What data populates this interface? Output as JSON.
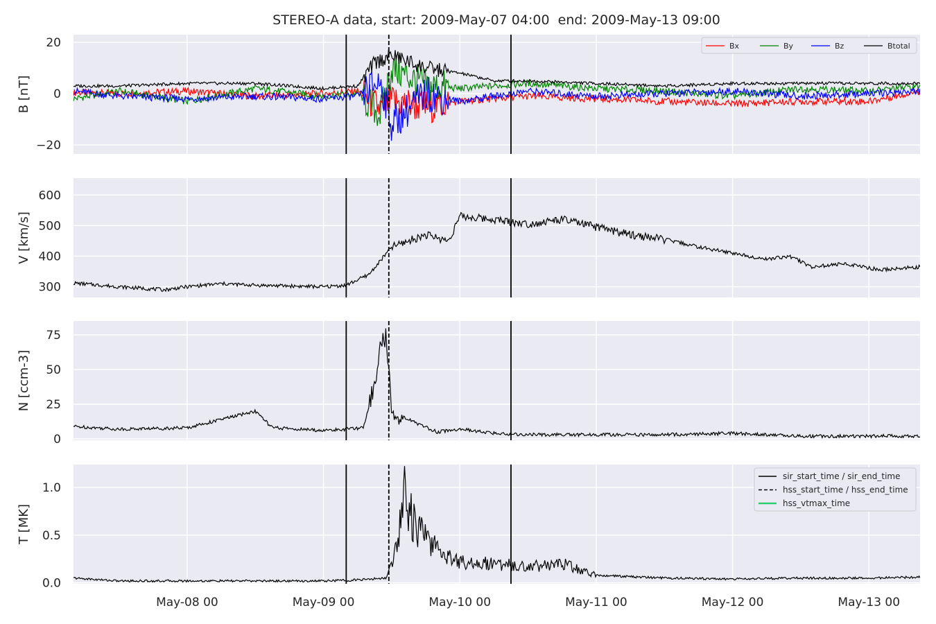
{
  "chart_data": {
    "type": "line",
    "title": "STEREO-A data, start: 2009-May-07 04:00  end: 2009-May-13 09:00",
    "xlim": [
      "2009-05-07T04:00",
      "2009-05-13T09:00"
    ],
    "xticks": [
      {
        "date": "2009-05-08T00:00",
        "label": "May-08 00"
      },
      {
        "date": "2009-05-09T00:00",
        "label": "May-09 00"
      },
      {
        "date": "2009-05-10T00:00",
        "label": "May-10 00"
      },
      {
        "date": "2009-05-11T00:00",
        "label": "May-11 00"
      },
      {
        "date": "2009-05-12T00:00",
        "label": "May-12 00"
      },
      {
        "date": "2009-05-13T00:00",
        "label": "May-13 00"
      }
    ],
    "grid": true,
    "vlines": [
      {
        "name": "sir_start_time / sir_end_time",
        "date": "2009-05-09T04:00",
        "style": "solid"
      },
      {
        "name": "hss_start_time / hss_end_time",
        "date": "2009-05-09T11:30",
        "style": "dashed"
      },
      {
        "name": "sir_start_time / sir_end_time",
        "date": "2009-05-10T09:00",
        "style": "solid"
      }
    ],
    "panels": [
      {
        "ylabel": "B [nT]",
        "ylim": [
          -23.5,
          23
        ],
        "yticks": [
          20,
          0,
          -20
        ],
        "yticklabels": [
          "20",
          "0",
          "−20"
        ],
        "legend": "top-right, 4 columns",
        "series": [
          {
            "name": "Bx",
            "color": "#ff0000",
            "points": [
              [
                "2009-05-07T04:00",
                0.5
              ],
              [
                "2009-05-07T12:00",
                0
              ],
              [
                "2009-05-08T00:00",
                1
              ],
              [
                "2009-05-08T12:00",
                -1
              ],
              [
                "2009-05-09T00:00",
                0
              ],
              [
                "2009-05-09T06:00",
                1
              ],
              [
                "2009-05-09T10:00",
                -6
              ],
              [
                "2009-05-09T12:00",
                -3
              ],
              [
                "2009-05-09T18:00",
                -5
              ],
              [
                "2009-05-10T00:00",
                -3
              ],
              [
                "2009-05-10T12:00",
                -1
              ],
              [
                "2009-05-11T00:00",
                -2
              ],
              [
                "2009-05-11T12:00",
                -3
              ],
              [
                "2009-05-12T00:00",
                -4
              ],
              [
                "2009-05-12T12:00",
                -3
              ],
              [
                "2009-05-13T00:00",
                -3
              ],
              [
                "2009-05-13T09:00",
                1
              ]
            ]
          },
          {
            "name": "By",
            "color": "#008000",
            "points": [
              [
                "2009-05-07T04:00",
                -2
              ],
              [
                "2009-05-07T12:00",
                1
              ],
              [
                "2009-05-08T00:00",
                -3
              ],
              [
                "2009-05-08T12:00",
                2
              ],
              [
                "2009-05-09T00:00",
                -1
              ],
              [
                "2009-05-09T06:00",
                0
              ],
              [
                "2009-05-09T10:00",
                -8
              ],
              [
                "2009-05-09T12:00",
                10
              ],
              [
                "2009-05-09T18:00",
                3
              ],
              [
                "2009-05-10T00:00",
                2
              ],
              [
                "2009-05-10T12:00",
                4
              ],
              [
                "2009-05-11T00:00",
                2
              ],
              [
                "2009-05-11T12:00",
                1
              ],
              [
                "2009-05-12T00:00",
                -1
              ],
              [
                "2009-05-12T12:00",
                2
              ],
              [
                "2009-05-13T00:00",
                1
              ],
              [
                "2009-05-13T09:00",
                3
              ]
            ]
          },
          {
            "name": "Bz",
            "color": "#0000ff",
            "points": [
              [
                "2009-05-07T04:00",
                1
              ],
              [
                "2009-05-07T12:00",
                -1
              ],
              [
                "2009-05-08T00:00",
                -2
              ],
              [
                "2009-05-08T12:00",
                -1
              ],
              [
                "2009-05-09T00:00",
                -2
              ],
              [
                "2009-05-09T06:00",
                -1
              ],
              [
                "2009-05-09T10:00",
                5
              ],
              [
                "2009-05-09T12:00",
                -12
              ],
              [
                "2009-05-09T18:00",
                0
              ],
              [
                "2009-05-10T00:00",
                -3
              ],
              [
                "2009-05-10T12:00",
                1
              ],
              [
                "2009-05-11T00:00",
                -1
              ],
              [
                "2009-05-11T12:00",
                0
              ],
              [
                "2009-05-12T00:00",
                1
              ],
              [
                "2009-05-12T12:00",
                -1
              ],
              [
                "2009-05-13T00:00",
                0
              ],
              [
                "2009-05-13T09:00",
                1
              ]
            ]
          },
          {
            "name": "Btotal",
            "color": "#000000",
            "points": [
              [
                "2009-05-07T04:00",
                3
              ],
              [
                "2009-05-07T12:00",
                3
              ],
              [
                "2009-05-08T00:00",
                4
              ],
              [
                "2009-05-08T12:00",
                4
              ],
              [
                "2009-05-09T00:00",
                2
              ],
              [
                "2009-05-09T06:00",
                3
              ],
              [
                "2009-05-09T09:00",
                12
              ],
              [
                "2009-05-09T12:00",
                15
              ],
              [
                "2009-05-09T18:00",
                10
              ],
              [
                "2009-05-10T00:00",
                8
              ],
              [
                "2009-05-10T06:00",
                5
              ],
              [
                "2009-05-10T12:00",
                5
              ],
              [
                "2009-05-11T00:00",
                4
              ],
              [
                "2009-05-11T12:00",
                3
              ],
              [
                "2009-05-12T00:00",
                4
              ],
              [
                "2009-05-12T12:00",
                4
              ],
              [
                "2009-05-13T00:00",
                4
              ],
              [
                "2009-05-13T09:00",
                4
              ]
            ]
          }
        ]
      },
      {
        "ylabel": "V [km/s]",
        "ylim": [
          265,
          655
        ],
        "yticks": [
          600,
          500,
          400,
          300
        ],
        "yticklabels": [
          "600",
          "500",
          "400",
          "300"
        ],
        "series": [
          {
            "name": "",
            "color": "#000000",
            "points": [
              [
                "2009-05-07T04:00",
                312
              ],
              [
                "2009-05-07T12:00",
                300
              ],
              [
                "2009-05-07T20:00",
                290
              ],
              [
                "2009-05-08T00:00",
                300
              ],
              [
                "2009-05-08T06:00",
                310
              ],
              [
                "2009-05-08T12:00",
                305
              ],
              [
                "2009-05-09T00:00",
                300
              ],
              [
                "2009-05-09T04:00",
                305
              ],
              [
                "2009-05-09T08:00",
                340
              ],
              [
                "2009-05-09T10:00",
                385
              ],
              [
                "2009-05-09T12:00",
                430
              ],
              [
                "2009-05-09T18:00",
                470
              ],
              [
                "2009-05-09T22:00",
                450
              ],
              [
                "2009-05-10T00:00",
                530
              ],
              [
                "2009-05-10T06:00",
                520
              ],
              [
                "2009-05-10T12:00",
                505
              ],
              [
                "2009-05-10T18:00",
                520
              ],
              [
                "2009-05-11T00:00",
                495
              ],
              [
                "2009-05-11T06:00",
                470
              ],
              [
                "2009-05-11T12:00",
                455
              ],
              [
                "2009-05-11T18:00",
                430
              ],
              [
                "2009-05-12T00:00",
                410
              ],
              [
                "2009-05-12T06:00",
                390
              ],
              [
                "2009-05-12T10:00",
                400
              ],
              [
                "2009-05-12T14:00",
                365
              ],
              [
                "2009-05-12T20:00",
                375
              ],
              [
                "2009-05-13T02:00",
                355
              ],
              [
                "2009-05-13T09:00",
                365
              ]
            ]
          }
        ]
      },
      {
        "ylabel": "N [ccm-3]",
        "ylim": [
          -1,
          85
        ],
        "yticks": [
          75,
          50,
          25,
          0
        ],
        "yticklabels": [
          "75",
          "50",
          "25",
          "0"
        ],
        "series": [
          {
            "name": "",
            "color": "#000000",
            "points": [
              [
                "2009-05-07T04:00",
                9
              ],
              [
                "2009-05-07T12:00",
                7
              ],
              [
                "2009-05-08T00:00",
                8
              ],
              [
                "2009-05-08T06:00",
                14
              ],
              [
                "2009-05-08T12:00",
                20
              ],
              [
                "2009-05-08T15:00",
                8
              ],
              [
                "2009-05-09T00:00",
                6
              ],
              [
                "2009-05-09T04:00",
                7
              ],
              [
                "2009-05-09T07:00",
                8
              ],
              [
                "2009-05-09T09:00",
                40
              ],
              [
                "2009-05-09T10:00",
                65
              ],
              [
                "2009-05-09T11:00",
                75
              ],
              [
                "2009-05-09T12:00",
                20
              ],
              [
                "2009-05-09T16:00",
                12
              ],
              [
                "2009-05-09T20:00",
                5
              ],
              [
                "2009-05-10T00:00",
                7
              ],
              [
                "2009-05-10T06:00",
                4
              ],
              [
                "2009-05-10T12:00",
                3
              ],
              [
                "2009-05-11T00:00",
                3
              ],
              [
                "2009-05-11T12:00",
                3
              ],
              [
                "2009-05-12T00:00",
                4
              ],
              [
                "2009-05-12T12:00",
                2
              ],
              [
                "2009-05-13T00:00",
                2
              ],
              [
                "2009-05-13T09:00",
                2
              ]
            ]
          }
        ]
      },
      {
        "ylabel": "T [MK]",
        "ylim": [
          -0.01,
          1.24
        ],
        "yticks": [
          1.0,
          0.5,
          0.0
        ],
        "yticklabels": [
          "1.0",
          "0.5",
          "0.0"
        ],
        "legend": "top-right",
        "legend_entries": [
          {
            "label": "sir_start_time / sir_end_time",
            "color": "#000000",
            "style": "solid"
          },
          {
            "label": "hss_start_time / hss_end_time",
            "color": "#000000",
            "style": "dashed"
          },
          {
            "label": "hss_vtmax_time",
            "color": "#2ecc71",
            "style": "solid"
          }
        ],
        "series": [
          {
            "name": "",
            "color": "#000000",
            "points": [
              [
                "2009-05-07T04:00",
                0.05
              ],
              [
                "2009-05-07T12:00",
                0.02
              ],
              [
                "2009-05-08T00:00",
                0.02
              ],
              [
                "2009-05-09T00:00",
                0.02
              ],
              [
                "2009-05-09T06:00",
                0.03
              ],
              [
                "2009-05-09T11:00",
                0.05
              ],
              [
                "2009-05-09T13:00",
                0.4
              ],
              [
                "2009-05-09T14:00",
                1.0
              ],
              [
                "2009-05-09T16:00",
                0.6
              ],
              [
                "2009-05-09T20:00",
                0.35
              ],
              [
                "2009-05-10T00:00",
                0.22
              ],
              [
                "2009-05-10T06:00",
                0.2
              ],
              [
                "2009-05-10T12:00",
                0.17
              ],
              [
                "2009-05-10T18:00",
                0.2
              ],
              [
                "2009-05-11T00:00",
                0.08
              ],
              [
                "2009-05-11T12:00",
                0.05
              ],
              [
                "2009-05-12T00:00",
                0.04
              ],
              [
                "2009-05-12T12:00",
                0.05
              ],
              [
                "2009-05-13T00:00",
                0.05
              ],
              [
                "2009-05-13T09:00",
                0.06
              ]
            ]
          }
        ]
      }
    ]
  }
}
